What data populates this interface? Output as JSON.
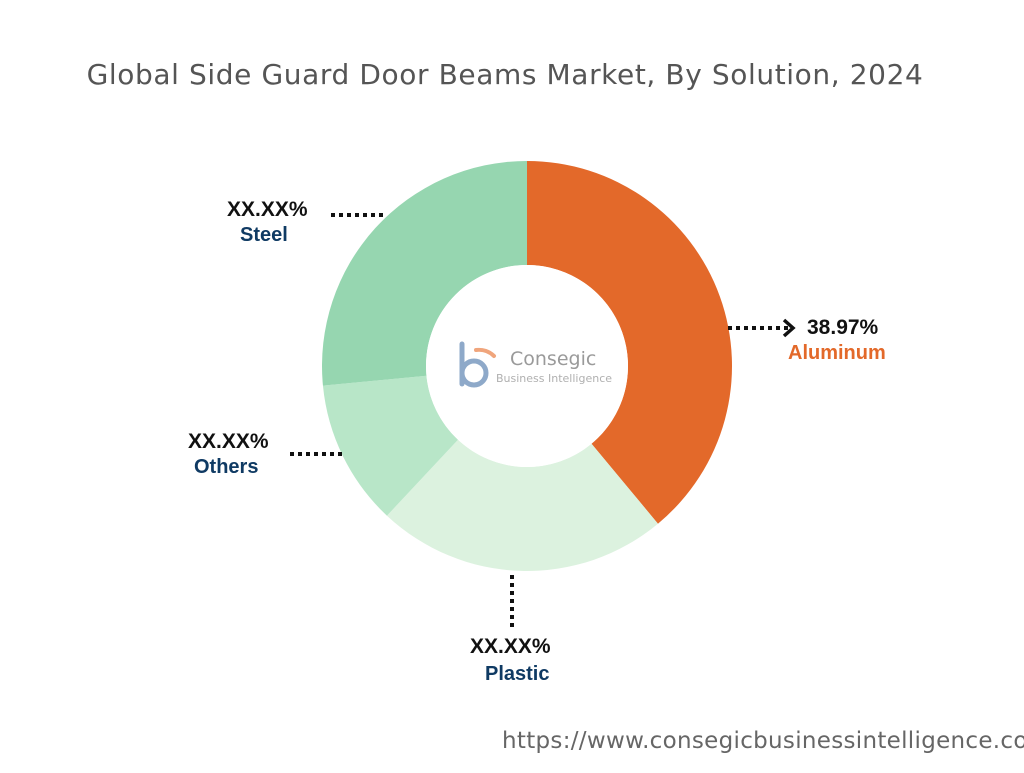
{
  "title": "Global Side Guard Door Beams Market, By Solution, 2024",
  "footer_url": "https://www.consegicbusinessintelligence.co",
  "logo": {
    "name": "Consegic",
    "tagline": "Business Intelligence"
  },
  "colors": {
    "label_name_default": "#0f3a63",
    "label_name_highlight": "#e3692a",
    "leader": "#111111"
  },
  "chart_data": {
    "type": "pie",
    "style": "donut",
    "slices": [
      {
        "name": "Aluminum",
        "label": "38.97%",
        "value": 38.97,
        "color": "#e3692a"
      },
      {
        "name": "Plastic",
        "label": "XX.XX%",
        "value": 23.0,
        "color": "#dcf2df"
      },
      {
        "name": "Others",
        "label": "XX.XX%",
        "value": 11.5,
        "color": "#b8e6c8"
      },
      {
        "name": "Steel",
        "label": "XX.XX%",
        "value": 26.53,
        "color": "#96d6b0"
      }
    ]
  }
}
